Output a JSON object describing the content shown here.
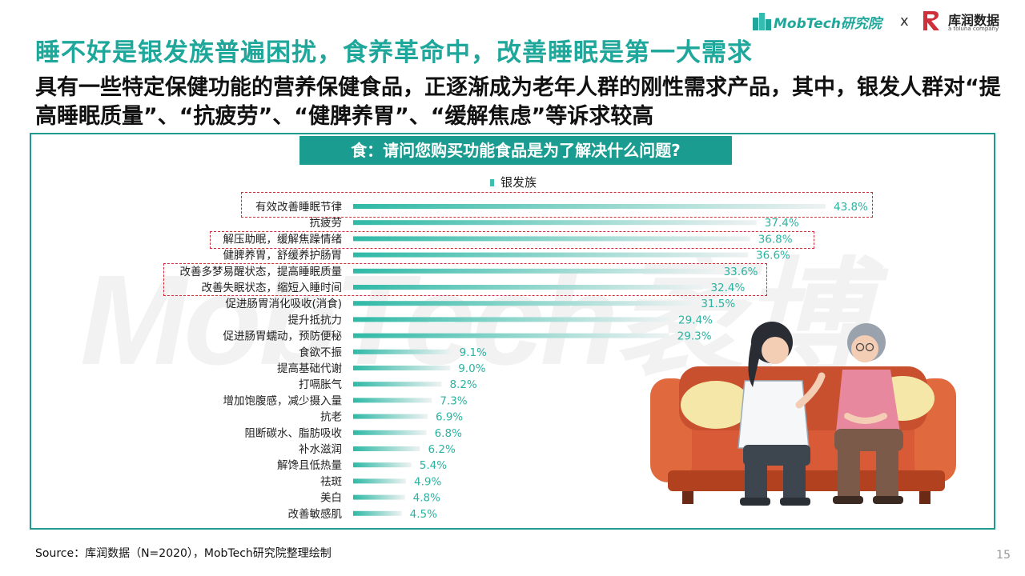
{
  "header": {
    "title": "睡不好是银发族普遍困扰，食养革命中，改善睡眠是第一大需求",
    "subtitle": "具有一些特定保健功能的营养保健食品，正逐渐成为老年人群的刚性需求产品，其中，银发人群对“提高睡眠质量”、“抗疲劳”、“健脾养胃”、“缓解焦虑”等诉求较高"
  },
  "logos": {
    "mobtech": "MobTech研究院",
    "separator": "x",
    "kurun": "库润数据",
    "kurun_sub": "a toluna company"
  },
  "question": "食：请问您购买功能食品是为了解决什么问题?",
  "legend_label": "银发族",
  "watermark": "MobTech袤博",
  "colors": {
    "accent": "#1ea79a",
    "bar": "#3cbfae",
    "value": "#2bb3a0",
    "highlight": "#d0303a"
  },
  "chart_data": {
    "type": "bar",
    "orientation": "horizontal",
    "title": "食：请问您购买功能食品是为了解决什么问题?",
    "categories": [
      "有效改善睡眠节律",
      "抗疲劳",
      "解压助眠，缓解焦躁情绪",
      "健脾养胃，舒缓养护肠胃",
      "改善多梦易醒状态，提高睡眠质量",
      "改善失眠状态，缩短入睡时间",
      "促进肠胃消化吸收(消食)",
      "提升抵抗力",
      "促进肠胃蠕动，预防便秘",
      "食欲不振",
      "提高基础代谢",
      "打嗝胀气",
      "增加饱腹感，减少摄入量",
      "抗老",
      "阻断碳水、脂肪吸收",
      "补水滋润",
      "解馋且低热量",
      "祛斑",
      "美白",
      "改善敏感肌"
    ],
    "series": [
      {
        "name": "银发族",
        "values": [
          43.8,
          37.4,
          36.8,
          36.6,
          33.6,
          32.4,
          31.5,
          29.4,
          29.3,
          9.1,
          9.0,
          8.2,
          7.3,
          6.9,
          6.8,
          6.2,
          5.4,
          4.9,
          4.8,
          4.5
        ]
      }
    ],
    "value_labels": [
      "43.8%",
      "37.4%",
      "36.8%",
      "36.6%",
      "33.6%",
      "32.4%",
      "31.5%",
      "29.4%",
      "29.3%",
      "9.1%",
      "9.0%",
      "8.2%",
      "7.3%",
      "6.9%",
      "6.8%",
      "6.2%",
      "5.4%",
      "4.9%",
      "4.8%",
      "4.5%"
    ],
    "highlighted": [
      0,
      2,
      4,
      5
    ]
  },
  "footer": {
    "source": "Source：库润数据（N=2020），MobTech研究院整理绘制",
    "page": "15"
  }
}
